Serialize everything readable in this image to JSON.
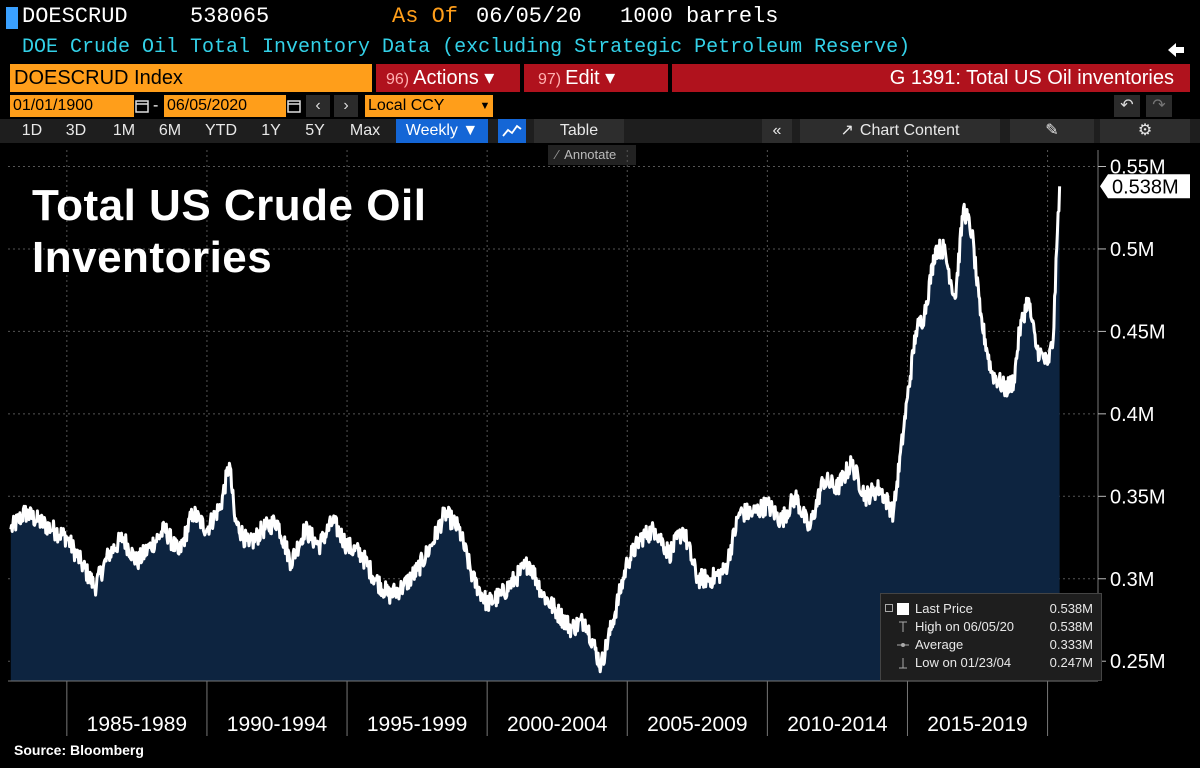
{
  "header": {
    "ticker": "DOESCRUD",
    "value": "538065",
    "as_of_label": "As Of",
    "as_of_date": "06/05/20",
    "units": "1000 barrels",
    "description": "DOE Crude Oil Total Inventory Data (excluding Strategic Petroleum Reserve)"
  },
  "toolbar": {
    "index_label": "DOESCRUD Index",
    "actions_num": "96)",
    "actions_label": "Actions ▾",
    "edit_num": "97)",
    "edit_label": "Edit ▾",
    "chart_id": "G 1391: Total US Oil inventories",
    "start_date": "01/01/1900",
    "end_date": "06/05/2020",
    "date_sep": "-",
    "currency": "Local CCY",
    "ranges": [
      "1D",
      "3D",
      "1M",
      "6M",
      "YTD",
      "1Y",
      "5Y",
      "Max"
    ],
    "frequency": "Weekly ▼",
    "table_label": "Table",
    "chart_content_label": "Chart Content",
    "annotate_label": "Annotate"
  },
  "legend": {
    "rows": [
      {
        "label": "Last Price",
        "value": "0.538M"
      },
      {
        "label": "High on 06/05/20",
        "value": "0.538M"
      },
      {
        "label": "Average",
        "value": "0.333M"
      },
      {
        "label": "Low on 01/23/04",
        "value": "0.247M"
      }
    ]
  },
  "source": "Source: Bloomberg",
  "colors": {
    "background": "#000000",
    "line": "#ffffff",
    "area": "#0d2440",
    "accent_orange": "#ff9e1a",
    "accent_red": "#b0121d",
    "header_cyan": "#33d1e8"
  },
  "chart_data": {
    "type": "area",
    "title": "Total US Crude Oil Inventories",
    "y_ticks": [
      "0.25M",
      "0.3M",
      "0.35M",
      "0.4M",
      "0.45M",
      "0.5M",
      "0.55M"
    ],
    "y_tick_values": [
      0.25,
      0.3,
      0.35,
      0.4,
      0.45,
      0.5,
      0.55
    ],
    "ylim": [
      0.238,
      0.56
    ],
    "x_period_labels": [
      "1985-1989",
      "1990-1994",
      "1995-1999",
      "2000-2004",
      "2005-2009",
      "2010-2014",
      "2015-2019"
    ],
    "xlim": [
      1982.9,
      2021.8
    ],
    "last_value_label": "0.538M",
    "grid": true,
    "series": [
      {
        "x": [
          1983.0,
          1983.5,
          1984.0,
          1984.5,
          1985.0,
          1985.5,
          1986.0,
          1986.5,
          1987.0,
          1987.5,
          1988.0,
          1988.5,
          1989.0,
          1989.5,
          1990.0,
          1990.5,
          1990.8,
          1991.0,
          1991.5,
          1992.0,
          1992.5,
          1993.0,
          1993.5,
          1994.0,
          1994.5,
          1995.0,
          1995.5,
          1996.0,
          1996.5,
          1997.0,
          1997.5,
          1998.0,
          1998.5,
          1999.0,
          1999.5,
          2000.0,
          2000.5,
          2001.0,
          2001.5,
          2002.0,
          2002.5,
          2003.0,
          2003.5,
          2004.06,
          2004.5,
          2005.0,
          2005.5,
          2006.0,
          2006.5,
          2007.0,
          2007.5,
          2008.0,
          2008.5,
          2009.0,
          2009.5,
          2010.0,
          2010.5,
          2011.0,
          2011.5,
          2012.0,
          2012.5,
          2013.0,
          2013.5,
          2014.0,
          2014.5,
          2015.0,
          2015.3,
          2015.6,
          2016.0,
          2016.3,
          2016.7,
          2017.0,
          2017.3,
          2017.6,
          2018.0,
          2018.5,
          2018.8,
          2019.0,
          2019.3,
          2019.6,
          2020.0,
          2020.2,
          2020.35,
          2020.43
        ],
        "values": [
          0.33,
          0.34,
          0.335,
          0.33,
          0.325,
          0.31,
          0.295,
          0.315,
          0.325,
          0.31,
          0.32,
          0.33,
          0.315,
          0.34,
          0.33,
          0.345,
          0.37,
          0.335,
          0.32,
          0.33,
          0.335,
          0.31,
          0.33,
          0.32,
          0.335,
          0.32,
          0.315,
          0.3,
          0.29,
          0.295,
          0.305,
          0.32,
          0.34,
          0.33,
          0.3,
          0.285,
          0.29,
          0.3,
          0.31,
          0.29,
          0.28,
          0.27,
          0.275,
          0.247,
          0.275,
          0.31,
          0.325,
          0.33,
          0.315,
          0.33,
          0.3,
          0.3,
          0.305,
          0.34,
          0.34,
          0.345,
          0.335,
          0.35,
          0.33,
          0.36,
          0.355,
          0.37,
          0.35,
          0.355,
          0.34,
          0.41,
          0.45,
          0.46,
          0.5,
          0.5,
          0.47,
          0.525,
          0.51,
          0.46,
          0.425,
          0.415,
          0.42,
          0.45,
          0.47,
          0.44,
          0.43,
          0.445,
          0.51,
          0.538
        ]
      }
    ]
  }
}
